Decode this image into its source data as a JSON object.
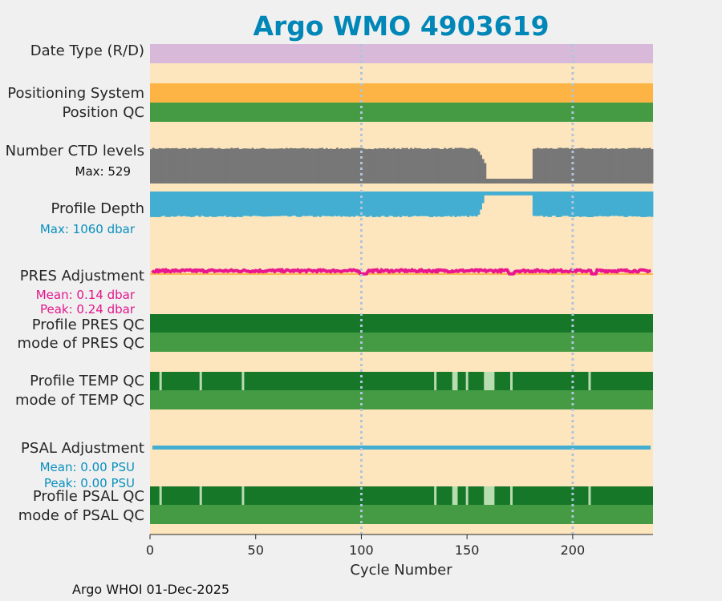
{
  "chart_data": {
    "type": "table",
    "title": "Argo WMO 4903619",
    "xlabel": "Cycle Number",
    "xlim": [
      0,
      238
    ],
    "xticks": [
      0,
      50,
      100,
      150,
      200
    ],
    "gridlines_at": [
      100,
      200
    ],
    "footer": "Argo WHOI 01-Dec-2025",
    "row_labels": {
      "date_type": "Date Type (R/D)",
      "positioning": "Positioning System",
      "position_qc": "Position QC",
      "ctd_levels": "Number CTD levels",
      "profile_depth": "Profile Depth",
      "pres_adjustment": "PRES Adjustment",
      "profile_pres_qc": "Profile PRES QC",
      "mode_pres_qc": "mode of PRES QC",
      "profile_temp_qc": "Profile TEMP QC",
      "mode_temp_qc": "mode of TEMP QC",
      "psal_adjustment": "PSAL Adjustment",
      "profile_psal_qc": "Profile PSAL QC",
      "mode_psal_qc": "mode of PSAL QC"
    },
    "annotations": {
      "ctd_max": "Max: 529",
      "depth_max": "Max: 1060 dbar",
      "pres_mean": "Mean: 0.14 dbar",
      "pres_peak": "Peak: 0.24 dbar",
      "psal_mean": "Mean: 0.00 PSU",
      "psal_peak": "Peak: 0.00 PSU"
    },
    "ctd_levels": {
      "max": 529,
      "typical": 510,
      "ramp_down": [
        [
          155,
          500
        ],
        [
          156,
          470
        ],
        [
          157,
          420
        ],
        [
          158,
          360
        ],
        [
          159,
          300
        ]
      ],
      "low_segment": {
        "start": 160,
        "end": 181,
        "value": 70
      }
    },
    "profile_depth": {
      "max_dbar": 1060,
      "typical": 1000,
      "ramp_down": [
        [
          156,
          900
        ],
        [
          157,
          700
        ],
        [
          158,
          450
        ]
      ],
      "low_segment": {
        "start": 159,
        "end": 181,
        "value": 150
      }
    },
    "pres_adjustment": {
      "mean": 0.14,
      "peak": 0.24,
      "unit": "dbar"
    },
    "psal_adjustment": {
      "mean": 0.0,
      "peak": 0.0,
      "unit": "PSU"
    },
    "qc_breaks": {
      "light_lines": [
        5,
        24,
        44,
        135,
        145,
        150,
        171,
        208
      ],
      "light_blocks": [
        [
          143,
          145
        ],
        [
          158,
          163
        ]
      ]
    },
    "colors": {
      "title": "#0087b8",
      "background": "#fde6bd",
      "date_type": "#d8b9da",
      "positioning": "#fdb444",
      "qc_good": "#449b44",
      "qc_dark": "#167728",
      "qc_light_line": "#b8dcb0",
      "qc_light_block": "#b7ddb0",
      "ctd": "#777777",
      "depth": "#43aed1",
      "pres": "#ea168f",
      "psal": "#43aed1",
      "gridline": "#b0c4dc"
    }
  }
}
